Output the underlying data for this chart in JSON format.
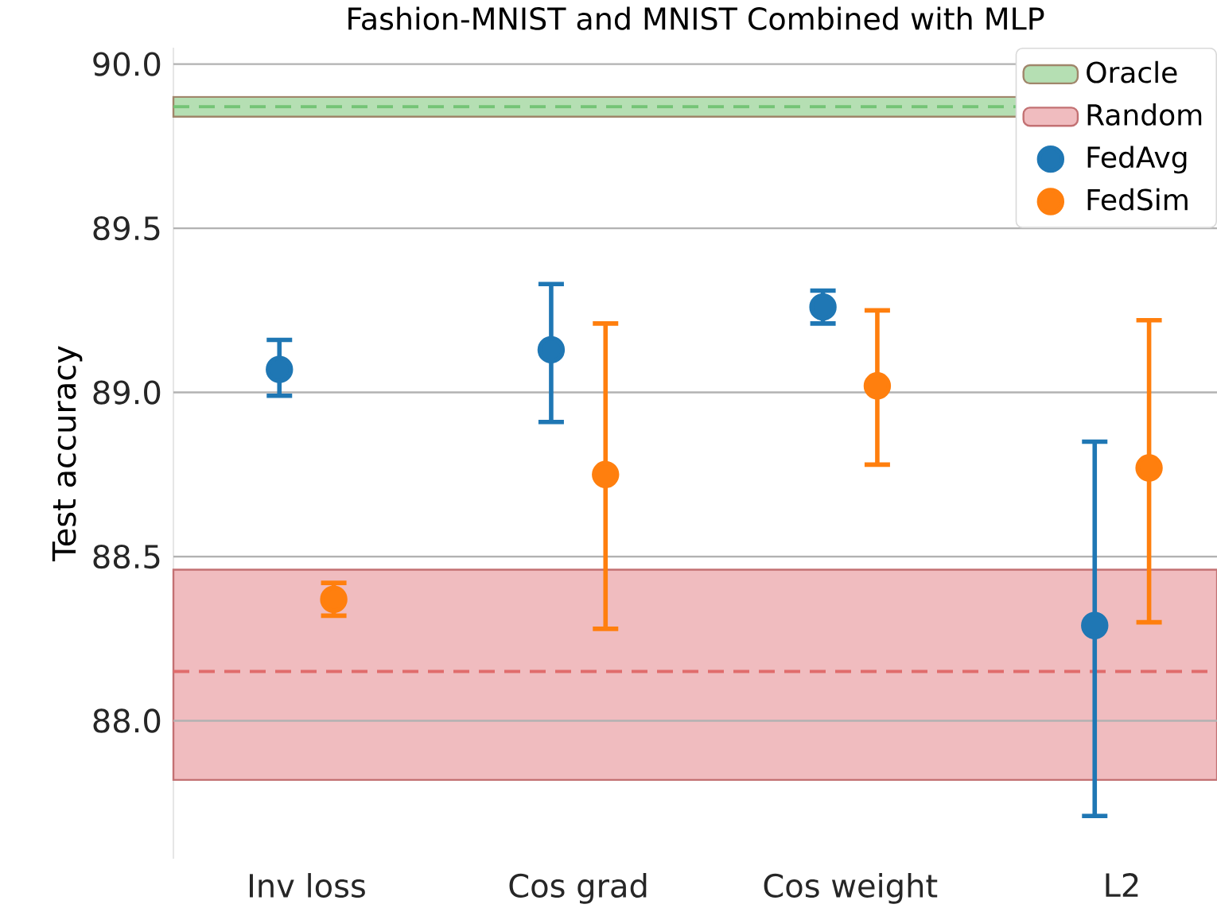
{
  "chart_data": {
    "type": "scatter",
    "title": "Fashion-MNIST and MNIST Combined with MLP",
    "ylabel": "Test accuracy",
    "categories": [
      "Inv loss",
      "Cos grad",
      "Cos weight",
      "L2"
    ],
    "series": [
      {
        "name": "FedAvg",
        "color": "#1f77b4",
        "values": [
          89.07,
          89.13,
          89.26,
          88.29
        ],
        "errors": [
          [
            88.99,
            89.16
          ],
          [
            88.91,
            89.33
          ],
          [
            89.21,
            89.31
          ],
          [
            87.71,
            88.85
          ]
        ]
      },
      {
        "name": "FedSim",
        "color": "#ff7f0e",
        "values": [
          88.37,
          88.75,
          89.02,
          88.77
        ],
        "errors": [
          [
            88.32,
            88.42
          ],
          [
            88.28,
            89.21
          ],
          [
            88.78,
            89.25
          ],
          [
            88.3,
            89.22
          ]
        ]
      }
    ],
    "bands": [
      {
        "axis": "y",
        "from": 89.84,
        "to": 89.9,
        "label": "Oracle",
        "color": "#b5dfb3"
      },
      {
        "axis": "y",
        "from": 87.82,
        "to": 88.46,
        "label": "Random",
        "color": "#f0bcbf"
      }
    ],
    "ref_lines": [
      {
        "axis": "y",
        "value": 89.87,
        "color": "#74c476",
        "line_style": "dashed"
      },
      {
        "axis": "y",
        "value": 88.15,
        "color": "#e06c6c",
        "line_style": "dashed"
      }
    ],
    "ylim": [
      87.58,
      90.05
    ],
    "yticks": [
      {
        "value": 88,
        "label": "88.0"
      },
      {
        "value": 88.5,
        "label": "88.5"
      },
      {
        "value": 89,
        "label": "89.0"
      },
      {
        "value": 89.5,
        "label": "89.5"
      },
      {
        "value": 90,
        "label": "90.0"
      }
    ],
    "grid": "y",
    "legend": "top right",
    "marker": "circle"
  }
}
